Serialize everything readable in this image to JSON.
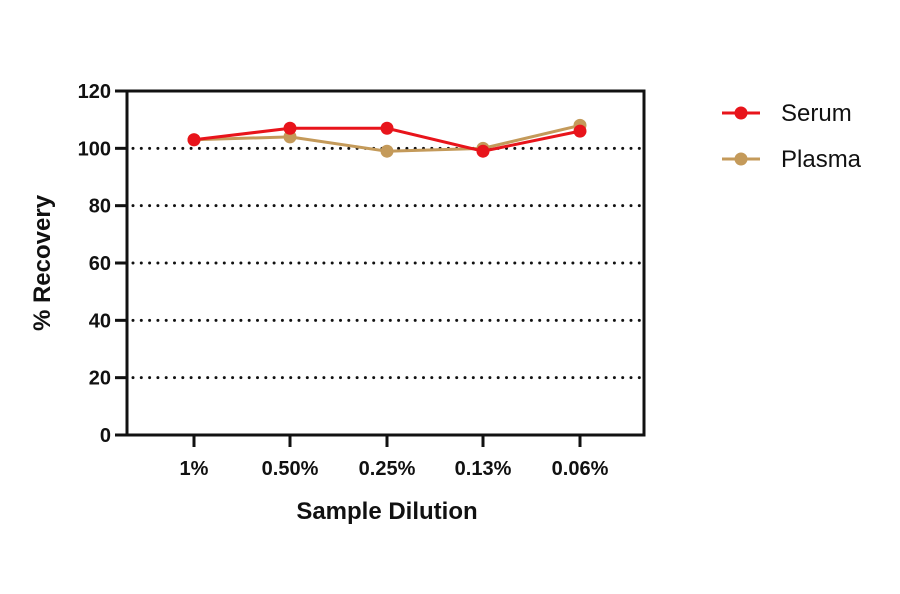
{
  "chart_data": {
    "type": "line",
    "title": "",
    "xlabel": "Sample Dilution",
    "ylabel": "% Recovery",
    "categories": [
      "1%",
      "0.50%",
      "0.25%",
      "0.13%",
      "0.06%"
    ],
    "ylim": [
      0,
      120
    ],
    "yticks": [
      0,
      20,
      40,
      60,
      80,
      100,
      120
    ],
    "grid": "horizontal dotted lines at 20, 40, 60, 80, 100",
    "legend_position": "right",
    "series": [
      {
        "name": "Serum",
        "color": "#e8141b",
        "values": [
          103,
          107,
          107,
          99,
          106
        ]
      },
      {
        "name": "Plasma",
        "color": "#c49a5a",
        "values": [
          103,
          104,
          99,
          100,
          108
        ]
      }
    ]
  },
  "legend": {
    "items": [
      {
        "label": "Serum"
      },
      {
        "label": "Plasma"
      }
    ]
  }
}
